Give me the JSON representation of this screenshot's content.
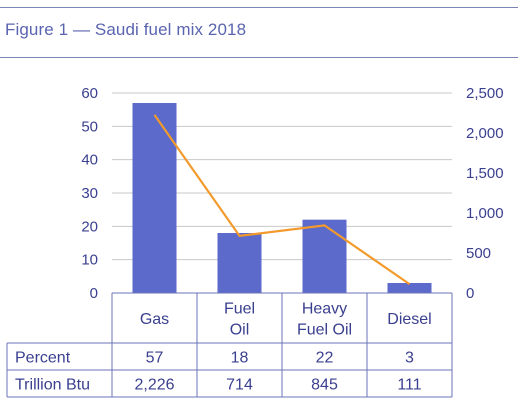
{
  "figure": {
    "title": "Figure 1 —  Saudi fuel mix 2018"
  },
  "colors": {
    "bar": "#5b6acb",
    "line": "#f39a2c",
    "text": "#3a3f8f",
    "grid": "#c8c8c8",
    "table_border": "#6b74b8"
  },
  "chart_data": {
    "type": "bar",
    "title": "Saudi fuel mix 2018",
    "categories": [
      [
        "Gas"
      ],
      [
        "Fuel",
        "Oil"
      ],
      [
        "Heavy",
        "Fuel Oil"
      ],
      [
        "Diesel"
      ]
    ],
    "series": [
      {
        "name": "Percent",
        "type": "bar",
        "axis": "left",
        "values": [
          57,
          18,
          22,
          3
        ]
      },
      {
        "name": "Trillion Btu",
        "type": "line",
        "axis": "right",
        "values": [
          2226,
          714,
          845,
          111
        ]
      }
    ],
    "y_left": {
      "min": 0,
      "max": 60,
      "ticks": [
        "0",
        "10",
        "20",
        "30",
        "40",
        "50",
        "60"
      ]
    },
    "y_right": {
      "min": 0,
      "max": 2500,
      "ticks": [
        "0",
        "500",
        "1,000",
        "1,500",
        "2,000",
        "2,500"
      ]
    },
    "grid": true,
    "table": {
      "rows": [
        {
          "label": "Percent",
          "cells": [
            "57",
            "18",
            "22",
            "3"
          ]
        },
        {
          "label": "Trillion Btu",
          "cells": [
            "2,226",
            "714",
            "845",
            "111"
          ]
        }
      ]
    }
  }
}
